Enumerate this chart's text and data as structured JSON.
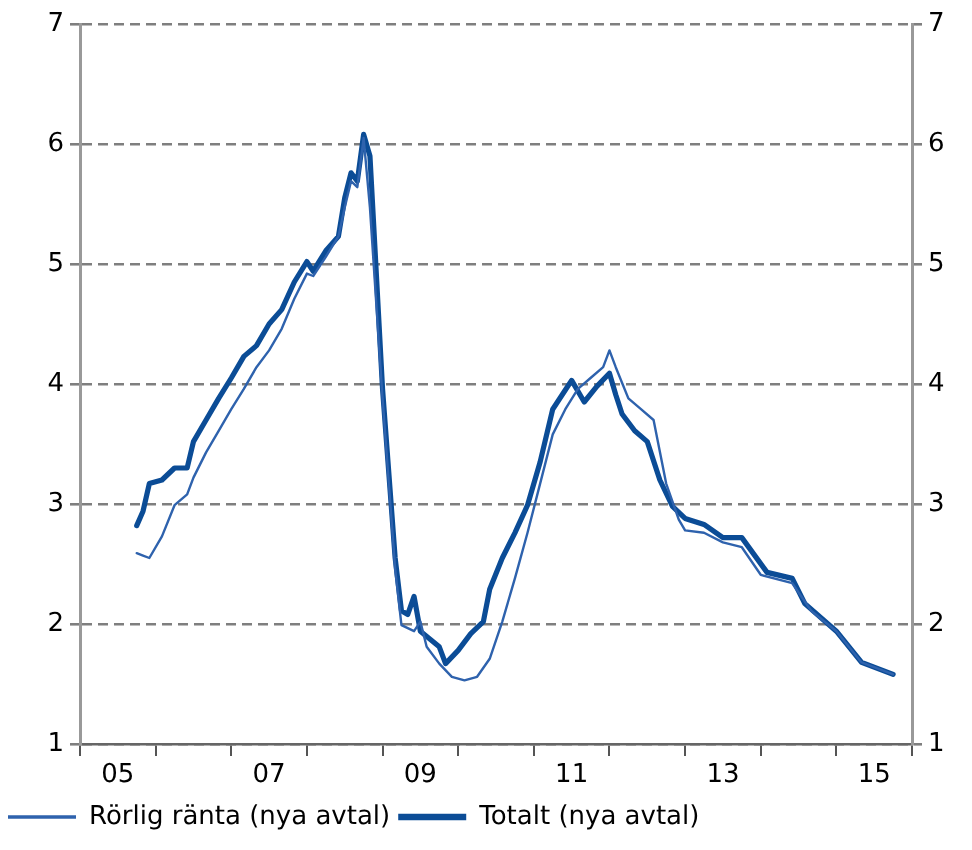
{
  "chart_data": {
    "type": "line",
    "xlim": [
      "2005",
      "2016"
    ],
    "xticks": [
      {
        "value": "2005",
        "label": null
      },
      {
        "value": "2005-07",
        "label": "05"
      },
      {
        "value": "2006",
        "label": null
      },
      {
        "value": "2007",
        "label": null
      },
      {
        "value": "2007-07",
        "label": "07"
      },
      {
        "value": "2008",
        "label": null
      },
      {
        "value": "2009",
        "label": null
      },
      {
        "value": "2009-07",
        "label": "09"
      },
      {
        "value": "2010",
        "label": null
      },
      {
        "value": "2011",
        "label": null
      },
      {
        "value": "2011-07",
        "label": "11"
      },
      {
        "value": "2012",
        "label": null
      },
      {
        "value": "2013",
        "label": null
      },
      {
        "value": "2013-07",
        "label": "13"
      },
      {
        "value": "2014",
        "label": null
      },
      {
        "value": "2015",
        "label": null
      },
      {
        "value": "2015-07",
        "label": "15"
      },
      {
        "value": "2016",
        "label": null
      }
    ],
    "ylim": [
      1,
      7
    ],
    "yticks": [
      1,
      2,
      3,
      4,
      5,
      6,
      7
    ],
    "y2lim": [
      1,
      7
    ],
    "y2ticks": [
      1,
      2,
      3,
      4,
      5,
      6,
      7
    ],
    "grid": "y",
    "legend": "bottom left",
    "marker": "none",
    "line_style": "solid",
    "series": [
      {
        "name": "Rörlig ränta (nya avtal)",
        "color": "#2e62ad",
        "x": [
          "2005-10",
          "2005-11",
          "2005-12",
          "2006-02",
          "2006-04",
          "2006-06",
          "2006-07",
          "2006-09",
          "2006-11",
          "2007-01",
          "2007-03",
          "2007-05",
          "2007-07",
          "2007-09",
          "2007-11",
          "2008-01",
          "2008-02",
          "2008-04",
          "2008-06",
          "2008-07",
          "2008-08",
          "2008-09",
          "2008-10",
          "2008-11",
          "2009-01",
          "2009-03",
          "2009-04",
          "2009-06",
          "2009-07",
          "2009-08",
          "2009-10",
          "2009-12",
          "2010-02",
          "2010-04",
          "2010-06",
          "2010-08",
          "2010-10",
          "2010-12",
          "2011-02",
          "2011-04",
          "2011-06",
          "2011-08",
          "2011-10",
          "2011-12",
          "2012-01",
          "2012-02",
          "2012-04",
          "2012-06",
          "2012-08",
          "2012-10",
          "2012-12",
          "2013-01",
          "2013-04",
          "2013-07",
          "2013-10",
          "2014-01",
          "2014-06",
          "2014-09",
          "2015-01",
          "2015-05",
          "2015-10"
        ],
        "values": [
          2.59,
          2.57,
          2.55,
          2.73,
          2.99,
          3.08,
          3.22,
          3.43,
          3.61,
          3.79,
          3.96,
          4.14,
          4.28,
          4.46,
          4.71,
          4.92,
          4.9,
          5.06,
          5.23,
          5.47,
          5.69,
          5.64,
          6.05,
          5.47,
          3.88,
          2.46,
          1.99,
          1.94,
          2.02,
          1.81,
          1.67,
          1.56,
          1.53,
          1.56,
          1.71,
          2.02,
          2.38,
          2.76,
          3.17,
          3.58,
          3.79,
          3.96,
          4.05,
          4.14,
          4.28,
          4.14,
          3.88,
          3.79,
          3.7,
          3.17,
          2.87,
          2.78,
          2.76,
          2.68,
          2.64,
          2.41,
          2.34,
          2.11,
          1.94,
          1.68,
          1.58
        ]
      },
      {
        "name": "Totalt (nya avtal)",
        "color": "#0b4c96",
        "x": [
          "2005-10",
          "2005-11",
          "2005-12",
          "2006-02",
          "2006-04",
          "2006-06",
          "2006-07",
          "2006-09",
          "2006-11",
          "2007-01",
          "2007-03",
          "2007-05",
          "2007-07",
          "2007-09",
          "2007-11",
          "2008-01",
          "2008-02",
          "2008-04",
          "2008-06",
          "2008-07",
          "2008-08",
          "2008-09",
          "2008-10",
          "2008-11",
          "2009-01",
          "2009-03",
          "2009-04",
          "2009-05",
          "2009-06",
          "2009-07",
          "2009-10",
          "2009-11",
          "2010-01",
          "2010-03",
          "2010-05",
          "2010-06",
          "2010-08",
          "2010-10",
          "2010-12",
          "2011-02",
          "2011-04",
          "2011-06",
          "2011-07",
          "2011-09",
          "2011-11",
          "2012-01",
          "2012-02",
          "2012-03",
          "2012-05",
          "2012-07",
          "2012-09",
          "2012-11",
          "2013-01",
          "2013-04",
          "2013-07",
          "2013-10",
          "2014-02",
          "2014-06",
          "2014-08",
          "2015-01",
          "2015-05",
          "2015-10"
        ],
        "values": [
          2.82,
          2.94,
          3.17,
          3.2,
          3.3,
          3.3,
          3.52,
          3.7,
          3.88,
          4.05,
          4.23,
          4.32,
          4.5,
          4.62,
          4.85,
          5.02,
          4.94,
          5.11,
          5.23,
          5.55,
          5.76,
          5.69,
          6.08,
          5.9,
          3.96,
          2.55,
          2.11,
          2.08,
          2.23,
          1.94,
          1.81,
          1.67,
          1.78,
          1.92,
          2.02,
          2.29,
          2.55,
          2.76,
          2.99,
          3.35,
          3.79,
          3.95,
          4.03,
          3.85,
          3.98,
          4.09,
          3.91,
          3.75,
          3.61,
          3.52,
          3.2,
          2.98,
          2.88,
          2.83,
          2.72,
          2.72,
          2.43,
          2.38,
          2.17,
          1.94,
          1.68,
          1.58
        ]
      }
    ]
  }
}
